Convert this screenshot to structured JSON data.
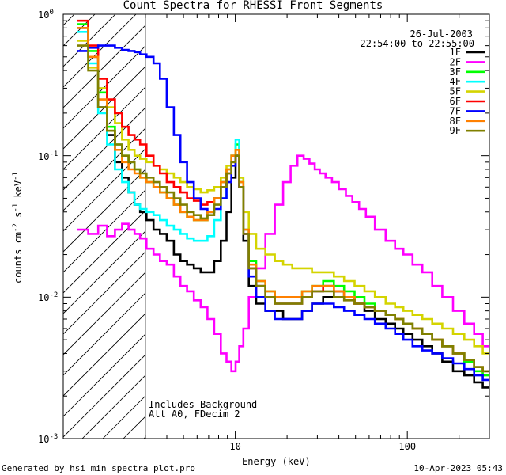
{
  "chart_data": {
    "type": "line",
    "title": "Count Spectra for RHESSI Front Segments",
    "date": "26-Jul-2003",
    "time_range": "22:54:00 to 22:55:00",
    "xlabel": "Energy (keV)",
    "ylabel_parts": [
      "counts cm",
      "-2",
      " s",
      "-1",
      " keV",
      "-1"
    ],
    "xscale": "log",
    "yscale": "log",
    "xlim": [
      1.0,
      300
    ],
    "ylim": [
      0.001,
      1.0
    ],
    "x_tick_labels": [
      {
        "value": 10,
        "label": "10"
      },
      {
        "value": 100,
        "label": "100"
      }
    ],
    "y_tick_labels": [
      {
        "value": 1.0,
        "base": "10",
        "exp": "0"
      },
      {
        "value": 0.1,
        "base": "10",
        "exp": "-1"
      },
      {
        "value": 0.01,
        "base": "10",
        "exp": "-2"
      },
      {
        "value": 0.001,
        "base": "10",
        "exp": "-3"
      }
    ],
    "hatched_region": [
      1.0,
      3.0
    ],
    "annotations": [
      "Includes Background",
      "Att A0, FDecim 2"
    ],
    "series": [
      {
        "name": "1F",
        "color": "#000000",
        "x": [
          1.3,
          1.5,
          1.7,
          1.9,
          2.1,
          2.3,
          2.5,
          2.7,
          2.9,
          3.2,
          3.5,
          3.8,
          4.2,
          4.6,
          5.0,
          5.5,
          6.0,
          6.6,
          7.2,
          7.9,
          8.6,
          9.2,
          9.8,
          10.3,
          10.8,
          11.5,
          12.5,
          14,
          16,
          18,
          20,
          23,
          26,
          30,
          35,
          40,
          46,
          53,
          60,
          70,
          80,
          90,
          100,
          115,
          130,
          150,
          170,
          200,
          230,
          260,
          290
        ],
        "y": [
          0.8,
          0.5,
          0.22,
          0.14,
          0.09,
          0.07,
          0.055,
          0.045,
          0.04,
          0.035,
          0.03,
          0.028,
          0.025,
          0.02,
          0.018,
          0.017,
          0.016,
          0.015,
          0.015,
          0.018,
          0.025,
          0.04,
          0.07,
          0.1,
          0.06,
          0.025,
          0.012,
          0.009,
          0.008,
          0.008,
          0.007,
          0.007,
          0.008,
          0.009,
          0.01,
          0.011,
          0.01,
          0.009,
          0.008,
          0.007,
          0.0065,
          0.006,
          0.0055,
          0.005,
          0.0045,
          0.004,
          0.0035,
          0.003,
          0.0028,
          0.0025,
          0.0023
        ]
      },
      {
        "name": "2F",
        "color": "#ff00ff",
        "x": [
          1.3,
          1.5,
          1.7,
          1.9,
          2.1,
          2.3,
          2.5,
          2.7,
          2.9,
          3.2,
          3.5,
          3.8,
          4.2,
          4.6,
          5.0,
          5.5,
          6.0,
          6.6,
          7.2,
          7.9,
          8.6,
          9.2,
          9.8,
          10.3,
          10.8,
          11.5,
          12.5,
          14,
          16,
          18,
          20,
          22,
          24,
          26,
          28,
          30,
          32,
          35,
          38,
          42,
          46,
          50,
          55,
          60,
          70,
          80,
          90,
          100,
          115,
          130,
          150,
          170,
          200,
          230,
          260,
          290
        ],
        "y": [
          0.03,
          0.028,
          0.032,
          0.027,
          0.03,
          0.033,
          0.03,
          0.028,
          0.026,
          0.022,
          0.02,
          0.018,
          0.017,
          0.014,
          0.012,
          0.011,
          0.0095,
          0.0085,
          0.007,
          0.0055,
          0.004,
          0.0035,
          0.003,
          0.0035,
          0.0045,
          0.006,
          0.01,
          0.016,
          0.028,
          0.045,
          0.065,
          0.085,
          0.1,
          0.095,
          0.088,
          0.08,
          0.075,
          0.07,
          0.065,
          0.058,
          0.052,
          0.047,
          0.042,
          0.037,
          0.03,
          0.025,
          0.022,
          0.02,
          0.017,
          0.015,
          0.012,
          0.01,
          0.008,
          0.0065,
          0.0055,
          0.0045
        ]
      },
      {
        "name": "3F",
        "color": "#00ff00",
        "x": [
          1.3,
          1.5,
          1.7,
          1.9,
          2.1,
          2.3,
          2.5,
          2.7,
          2.9,
          3.2,
          3.5,
          3.8,
          4.2,
          4.6,
          5.0,
          5.5,
          6.0,
          6.6,
          7.2,
          7.9,
          8.6,
          9.2,
          9.8,
          10.3,
          10.8,
          11.5,
          12.5,
          14,
          16,
          18,
          20,
          23,
          26,
          30,
          35,
          40,
          46,
          53,
          60,
          70,
          80,
          90,
          100,
          115,
          130,
          150,
          170,
          200,
          230,
          260,
          290
        ],
        "y": [
          0.85,
          0.55,
          0.28,
          0.16,
          0.12,
          0.1,
          0.09,
          0.08,
          0.07,
          0.065,
          0.06,
          0.055,
          0.05,
          0.045,
          0.04,
          0.037,
          0.035,
          0.035,
          0.04,
          0.05,
          0.065,
          0.08,
          0.1,
          0.12,
          0.065,
          0.03,
          0.018,
          0.013,
          0.011,
          0.01,
          0.01,
          0.01,
          0.011,
          0.012,
          0.013,
          0.012,
          0.011,
          0.01,
          0.009,
          0.008,
          0.0075,
          0.007,
          0.0065,
          0.006,
          0.0055,
          0.005,
          0.0045,
          0.004,
          0.0035,
          0.003,
          0.0028
        ]
      },
      {
        "name": "4F",
        "color": "#00ffff",
        "x": [
          1.3,
          1.5,
          1.7,
          1.9,
          2.1,
          2.3,
          2.5,
          2.7,
          2.9,
          3.2,
          3.5,
          3.8,
          4.2,
          4.6,
          5.0,
          5.5,
          6.0,
          6.6,
          7.2,
          7.9,
          8.6,
          9.2,
          9.8,
          10.3,
          10.8,
          11.5,
          12.5,
          14,
          16,
          18,
          20,
          23,
          26,
          30,
          35,
          40,
          46,
          53,
          60,
          70,
          80,
          90,
          100,
          115,
          130,
          150,
          170,
          200,
          230,
          260,
          290
        ],
        "y": [
          0.75,
          0.45,
          0.2,
          0.12,
          0.08,
          0.065,
          0.055,
          0.045,
          0.042,
          0.04,
          0.038,
          0.035,
          0.032,
          0.03,
          0.028,
          0.026,
          0.025,
          0.025,
          0.027,
          0.035,
          0.05,
          0.075,
          0.1,
          0.13,
          0.07,
          0.03,
          0.016,
          0.012,
          0.01,
          0.009,
          0.009,
          0.009,
          0.01,
          0.011,
          0.012,
          0.011,
          0.01,
          0.009,
          0.0085,
          0.008,
          0.0075,
          0.007,
          0.0065,
          0.006,
          0.0055,
          0.005,
          0.0045,
          0.004,
          0.0036,
          0.0032,
          0.003
        ]
      },
      {
        "name": "5F",
        "color": "#d4d400",
        "x": [
          1.3,
          1.5,
          1.7,
          1.9,
          2.1,
          2.3,
          2.5,
          2.7,
          2.9,
          3.2,
          3.5,
          3.8,
          4.2,
          4.6,
          5.0,
          5.5,
          6.0,
          6.6,
          7.2,
          7.9,
          8.6,
          9.2,
          9.8,
          10.3,
          10.8,
          11.5,
          12.5,
          14,
          16,
          18,
          20,
          23,
          26,
          30,
          35,
          40,
          46,
          53,
          60,
          70,
          80,
          90,
          100,
          115,
          130,
          150,
          170,
          200,
          230,
          260,
          290
        ],
        "y": [
          0.65,
          0.42,
          0.3,
          0.22,
          0.17,
          0.13,
          0.11,
          0.1,
          0.095,
          0.09,
          0.085,
          0.08,
          0.075,
          0.07,
          0.065,
          0.06,
          0.058,
          0.055,
          0.057,
          0.06,
          0.07,
          0.085,
          0.1,
          0.11,
          0.07,
          0.04,
          0.028,
          0.022,
          0.02,
          0.018,
          0.017,
          0.016,
          0.016,
          0.015,
          0.015,
          0.014,
          0.013,
          0.012,
          0.011,
          0.01,
          0.009,
          0.0085,
          0.008,
          0.0075,
          0.007,
          0.0065,
          0.006,
          0.0055,
          0.005,
          0.0045,
          0.004
        ]
      },
      {
        "name": "6F",
        "color": "#ff0000",
        "x": [
          1.3,
          1.5,
          1.7,
          1.9,
          2.1,
          2.3,
          2.5,
          2.7,
          2.9,
          3.2,
          3.5,
          3.8,
          4.2,
          4.6,
          5.0,
          5.5,
          6.0,
          6.6,
          7.2,
          7.9,
          8.6,
          9.2,
          9.8,
          10.3,
          10.8,
          11.5,
          12.5,
          14,
          16,
          18,
          20,
          23,
          26,
          30,
          35,
          40,
          46,
          53,
          60,
          70,
          80,
          90,
          100,
          115,
          130,
          150,
          170,
          200,
          230,
          260,
          290
        ],
        "y": [
          0.9,
          0.6,
          0.35,
          0.25,
          0.2,
          0.16,
          0.14,
          0.13,
          0.12,
          0.1,
          0.085,
          0.075,
          0.065,
          0.06,
          0.055,
          0.05,
          0.048,
          0.045,
          0.047,
          0.05,
          0.06,
          0.075,
          0.09,
          0.1,
          0.06,
          0.028,
          0.016,
          0.012,
          0.01,
          0.009,
          0.009,
          0.009,
          0.01,
          0.011,
          0.012,
          0.011,
          0.01,
          0.009,
          0.0085,
          0.008,
          0.0075,
          0.007,
          0.0065,
          0.006,
          0.0055,
          0.005,
          0.0045,
          0.004,
          0.0036,
          0.0032,
          0.003
        ]
      },
      {
        "name": "7F",
        "color": "#0000ff",
        "x": [
          1.3,
          1.5,
          1.7,
          1.9,
          2.1,
          2.3,
          2.5,
          2.7,
          2.9,
          3.2,
          3.5,
          3.8,
          4.2,
          4.6,
          5.0,
          5.5,
          6.0,
          6.6,
          7.2,
          7.9,
          8.6,
          9.2,
          9.8,
          10.3,
          10.8,
          11.5,
          12.5,
          14,
          16,
          18,
          20,
          23,
          26,
          30,
          35,
          40,
          46,
          53,
          60,
          70,
          80,
          90,
          100,
          115,
          130,
          150,
          170,
          200,
          230,
          260,
          290
        ],
        "y": [
          0.55,
          0.58,
          0.6,
          0.6,
          0.58,
          0.56,
          0.55,
          0.54,
          0.52,
          0.5,
          0.45,
          0.35,
          0.22,
          0.14,
          0.09,
          0.065,
          0.05,
          0.042,
          0.04,
          0.042,
          0.05,
          0.065,
          0.085,
          0.1,
          0.06,
          0.028,
          0.014,
          0.01,
          0.008,
          0.007,
          0.007,
          0.007,
          0.008,
          0.009,
          0.009,
          0.0085,
          0.008,
          0.0075,
          0.007,
          0.0065,
          0.006,
          0.0055,
          0.005,
          0.0045,
          0.0042,
          0.004,
          0.0037,
          0.0034,
          0.0031,
          0.0028,
          0.0026
        ]
      },
      {
        "name": "8F",
        "color": "#ff8000",
        "x": [
          1.3,
          1.5,
          1.7,
          1.9,
          2.1,
          2.3,
          2.5,
          2.7,
          2.9,
          3.2,
          3.5,
          3.8,
          4.2,
          4.6,
          5.0,
          5.5,
          6.0,
          6.6,
          7.2,
          7.9,
          8.6,
          9.2,
          9.8,
          10.3,
          10.8,
          11.5,
          12.5,
          14,
          16,
          18,
          20,
          23,
          26,
          30,
          35,
          40,
          46,
          53,
          60,
          70,
          80,
          90,
          100,
          115,
          130,
          150,
          170,
          200,
          230,
          260,
          290
        ],
        "y": [
          0.8,
          0.5,
          0.25,
          0.15,
          0.11,
          0.09,
          0.08,
          0.075,
          0.07,
          0.065,
          0.06,
          0.055,
          0.05,
          0.045,
          0.04,
          0.037,
          0.035,
          0.035,
          0.04,
          0.05,
          0.065,
          0.08,
          0.1,
          0.11,
          0.065,
          0.03,
          0.017,
          0.013,
          0.011,
          0.01,
          0.01,
          0.01,
          0.011,
          0.012,
          0.012,
          0.011,
          0.01,
          0.009,
          0.0085,
          0.008,
          0.0075,
          0.007,
          0.0065,
          0.006,
          0.0055,
          0.005,
          0.0045,
          0.004,
          0.0036,
          0.0032,
          0.003
        ]
      },
      {
        "name": "9F",
        "color": "#808000",
        "x": [
          1.3,
          1.5,
          1.7,
          1.9,
          2.1,
          2.3,
          2.5,
          2.7,
          2.9,
          3.2,
          3.5,
          3.8,
          4.2,
          4.6,
          5.0,
          5.5,
          6.0,
          6.6,
          7.2,
          7.9,
          8.6,
          9.2,
          9.8,
          10.3,
          10.8,
          11.5,
          12.5,
          14,
          16,
          18,
          20,
          23,
          26,
          30,
          35,
          40,
          46,
          53,
          60,
          70,
          80,
          90,
          100,
          115,
          130,
          150,
          170,
          200,
          230,
          260,
          290
        ],
        "y": [
          0.6,
          0.4,
          0.22,
          0.15,
          0.12,
          0.1,
          0.09,
          0.08,
          0.075,
          0.07,
          0.065,
          0.06,
          0.055,
          0.05,
          0.045,
          0.04,
          0.038,
          0.036,
          0.038,
          0.045,
          0.06,
          0.075,
          0.09,
          0.1,
          0.06,
          0.028,
          0.016,
          0.012,
          0.01,
          0.009,
          0.009,
          0.009,
          0.01,
          0.011,
          0.011,
          0.01,
          0.0095,
          0.009,
          0.0085,
          0.008,
          0.0075,
          0.007,
          0.0065,
          0.006,
          0.0055,
          0.005,
          0.0045,
          0.004,
          0.0036,
          0.0032,
          0.003
        ]
      }
    ]
  },
  "footer": {
    "generated_by": "Generated by hsi_min_spectra_plot.pro",
    "timestamp": "10-Apr-2023 05:43"
  }
}
